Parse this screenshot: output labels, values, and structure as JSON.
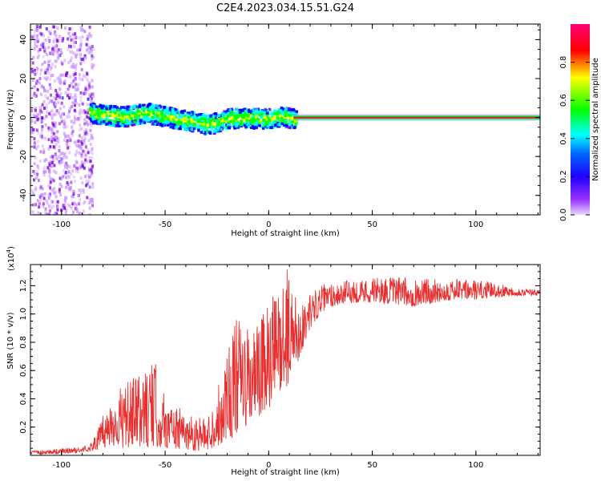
{
  "title": "C2E4.2023.034.15.51.G24",
  "chart_data": [
    {
      "type": "heatmap",
      "xlabel": "Height of straight line (km)",
      "ylabel": "Frequency (Hz)",
      "xlim": [
        -115,
        131
      ],
      "ylim": [
        -50,
        48
      ],
      "x_ticks": [
        "-100",
        "-50",
        "0",
        "50",
        "100"
      ],
      "x_tick_values": [
        -100,
        -50,
        0,
        50,
        100
      ],
      "y_ticks": [
        "-40",
        "-20",
        "0",
        "20",
        "40"
      ],
      "y_tick_values": [
        -40,
        -20,
        0,
        20,
        40
      ],
      "colorbar": {
        "label": "Normalized spectral amplitude",
        "ticks": [
          "0.0",
          "0.2",
          "0.4",
          "0.6",
          "0.8"
        ],
        "tick_values": [
          0.0,
          0.2,
          0.4,
          0.6,
          0.8
        ],
        "range": [
          0,
          1
        ],
        "colormap": [
          "#cc99ff",
          "#7700dd",
          "#0000ff",
          "#00ffff",
          "#00ff00",
          "#ffff00",
          "#ff0000",
          "#ff0088"
        ]
      },
      "ridge": {
        "x": [
          -87,
          -80,
          -70,
          -60,
          -50,
          -40,
          -30,
          -25,
          -20,
          -10,
          0,
          5,
          12,
          131
        ],
        "y": [
          3,
          2,
          1,
          3,
          1,
          -1,
          -3,
          -2,
          0,
          0,
          0,
          1,
          0,
          0
        ]
      }
    },
    {
      "type": "line",
      "xlabel": "Height of straight line (km)",
      "ylabel": "SNR (10 * v/v)",
      "y_multiplier": "(x10",
      "y_multiplier_exp": "4",
      "y_multiplier_close": ")",
      "xlim": [
        -115,
        131
      ],
      "ylim": [
        0,
        1.35
      ],
      "x_ticks": [
        "-100",
        "-50",
        "0",
        "50",
        "100"
      ],
      "x_tick_values": [
        -100,
        -50,
        0,
        50,
        100
      ],
      "y_ticks": [
        "0.2",
        "0.4",
        "0.6",
        "0.8",
        "1.0",
        "1.2"
      ],
      "y_tick_values": [
        0.2,
        0.4,
        0.6,
        0.8,
        1.0,
        1.2
      ],
      "line_color": "#e83030",
      "envelope": {
        "x": [
          -115,
          -100,
          -90,
          -85,
          -80,
          -75,
          -70,
          -60,
          -55,
          -50,
          -45,
          -40,
          -35,
          -30,
          -25,
          -20,
          -15,
          -10,
          -5,
          0,
          5,
          10,
          15,
          20,
          25,
          30,
          40,
          50,
          60,
          70,
          80,
          90,
          100,
          110,
          120,
          131
        ],
        "y_low": [
          0.01,
          0.01,
          0.02,
          0.03,
          0.05,
          0.06,
          0.05,
          0.06,
          0.05,
          0.05,
          0.04,
          0.04,
          0.03,
          0.04,
          0.06,
          0.1,
          0.15,
          0.2,
          0.25,
          0.3,
          0.45,
          0.5,
          0.7,
          0.9,
          1.0,
          1.05,
          1.08,
          1.08,
          1.07,
          1.05,
          1.08,
          1.1,
          1.1,
          1.12,
          1.13,
          1.13
        ],
        "y_high": [
          0.03,
          0.05,
          0.06,
          0.1,
          0.28,
          0.45,
          0.5,
          0.6,
          0.67,
          0.42,
          0.36,
          0.3,
          0.3,
          0.25,
          0.45,
          0.82,
          0.98,
          0.9,
          0.95,
          1.1,
          1.2,
          1.35,
          1.05,
          1.15,
          1.2,
          1.23,
          1.24,
          1.26,
          1.26,
          1.26,
          1.25,
          1.25,
          1.24,
          1.22,
          1.19,
          1.17
        ]
      }
    }
  ]
}
